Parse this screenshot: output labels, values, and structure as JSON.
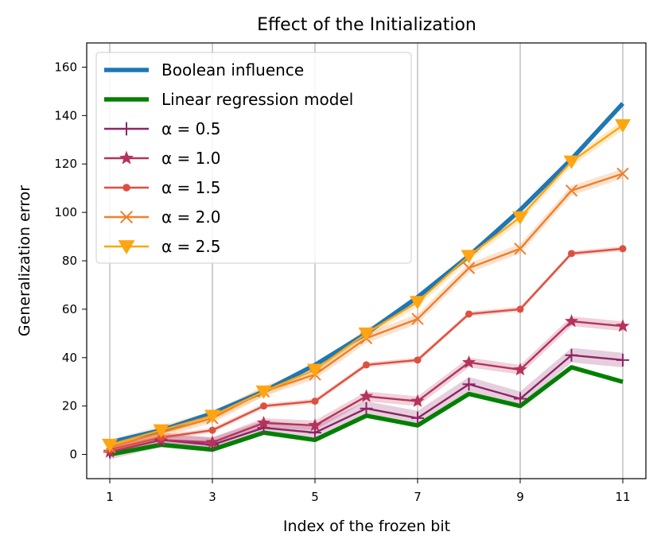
{
  "chart_data": {
    "type": "line",
    "title": "Effect of the Initialization",
    "xlabel": "Index of the frozen bit",
    "ylabel": "Generalization error",
    "xlim": [
      0.55,
      11.45
    ],
    "ylim": [
      -10,
      170
    ],
    "xticks": [
      1,
      3,
      5,
      7,
      9,
      11
    ],
    "yticks": [
      0,
      20,
      40,
      60,
      80,
      100,
      120,
      140,
      160
    ],
    "grid": "vertical lines at x ticks",
    "legend_position": "top-left",
    "x": [
      1,
      2,
      3,
      4,
      5,
      6,
      7,
      8,
      9,
      10,
      11
    ],
    "series": [
      {
        "name": "Boolean influence",
        "color": "#1f77b4",
        "marker": "none",
        "line_width": "thick",
        "values": [
          5,
          10,
          17,
          26,
          37,
          50,
          65,
          82,
          101,
          122,
          145
        ]
      },
      {
        "name": "Linear regression model",
        "color": "#008000",
        "marker": "none",
        "line_width": "thick",
        "values": [
          0,
          4,
          2,
          9,
          6,
          16,
          12,
          25,
          20,
          36,
          30
        ]
      },
      {
        "name": "α = 0.5",
        "color": "#8b2565",
        "marker": "plus",
        "band": 3,
        "values": [
          1,
          6,
          4,
          11,
          9,
          19,
          15,
          29,
          23,
          41,
          39
        ]
      },
      {
        "name": "α = 1.0",
        "color": "#b5335a",
        "marker": "star",
        "band": 2,
        "values": [
          1,
          6,
          5,
          13,
          12,
          24,
          22,
          38,
          35,
          55,
          53
        ]
      },
      {
        "name": "α = 1.5",
        "color": "#dd4f3f",
        "marker": "circle",
        "band": 1,
        "values": [
          2,
          7,
          10,
          20,
          22,
          37,
          39,
          58,
          60,
          83,
          85
        ]
      },
      {
        "name": "α = 2.0",
        "color": "#f07f2a",
        "marker": "x",
        "band": 2,
        "values": [
          3,
          9,
          15,
          26,
          33,
          48,
          56,
          77,
          85,
          109,
          116
        ]
      },
      {
        "name": "α = 2.5",
        "color": "#fea512",
        "marker": "triangle-down",
        "band": 2,
        "values": [
          4,
          10,
          16,
          26,
          35,
          50,
          63,
          82,
          98,
          121,
          136
        ]
      }
    ]
  }
}
